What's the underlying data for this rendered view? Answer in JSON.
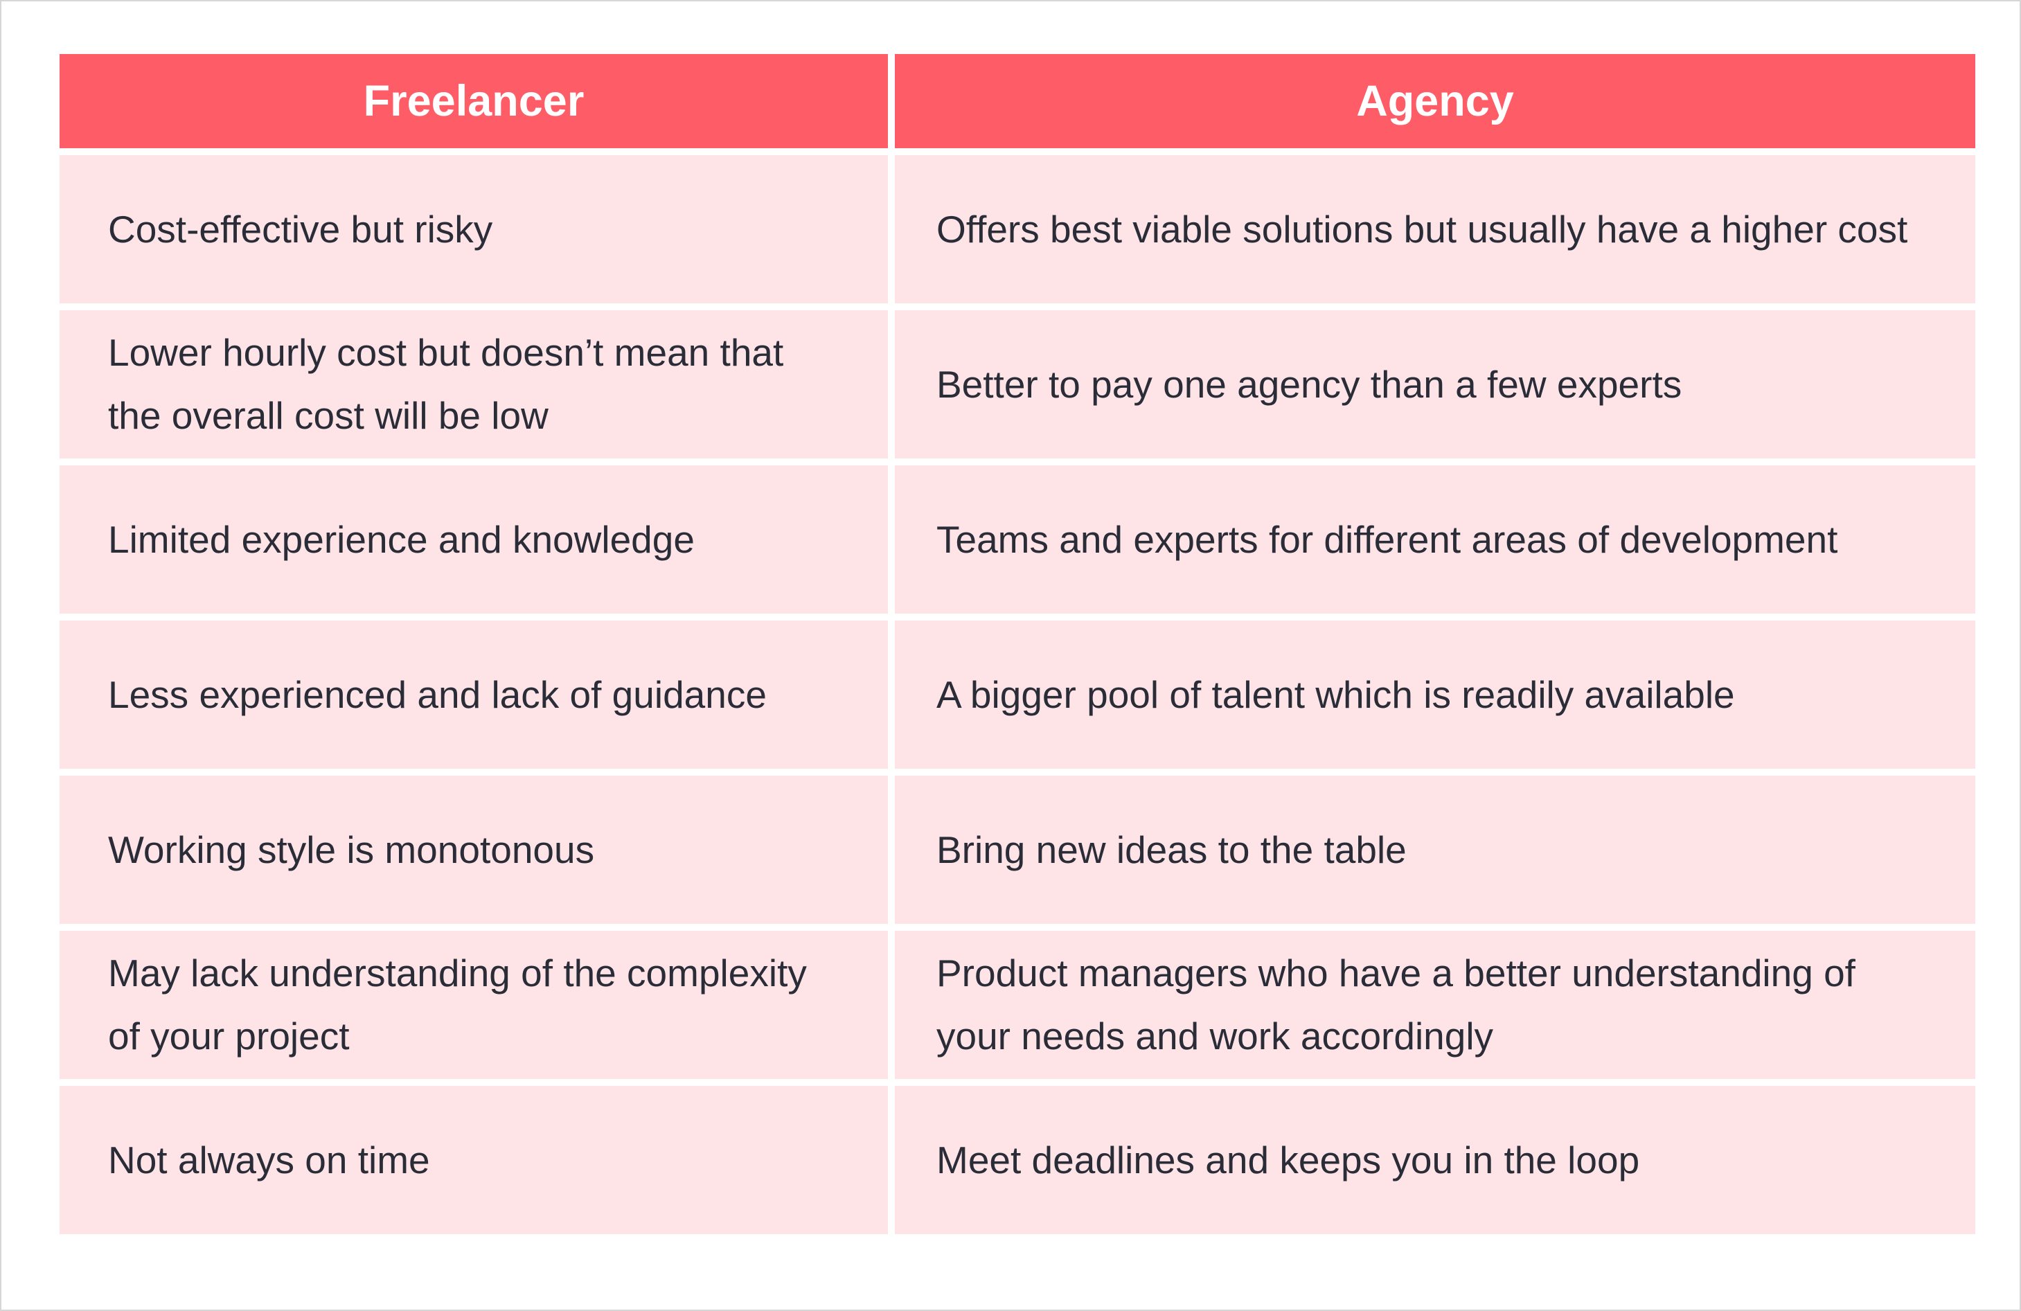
{
  "chart_data": {
    "type": "table",
    "columns": [
      "Freelancer",
      "Agency"
    ],
    "rows": [
      [
        "Cost-effective but risky",
        "Offers best viable solutions but usually have a higher cost"
      ],
      [
        "Lower hourly cost but doesn’t mean that the overall cost will be low",
        "Better to pay one agency than a few experts"
      ],
      [
        "Limited experience and knowledge",
        "Teams and experts for different areas of development"
      ],
      [
        "Less experienced and lack of guidance",
        "A bigger pool of talent which is readily available"
      ],
      [
        "Working style is monotonous",
        "Bring new ideas to the table"
      ],
      [
        "May lack understanding of the complexity of your project",
        "Product managers who have a better understanding of your needs and work accordingly"
      ],
      [
        "Not always on time",
        "Meet deadlines and keeps you in the loop"
      ]
    ]
  },
  "colors": {
    "header_background": "#fe5d67",
    "header_text": "#ffffff",
    "cell_background": "#fee4e6",
    "cell_text": "#2a2d38",
    "frame_border": "#d6d6d6"
  }
}
